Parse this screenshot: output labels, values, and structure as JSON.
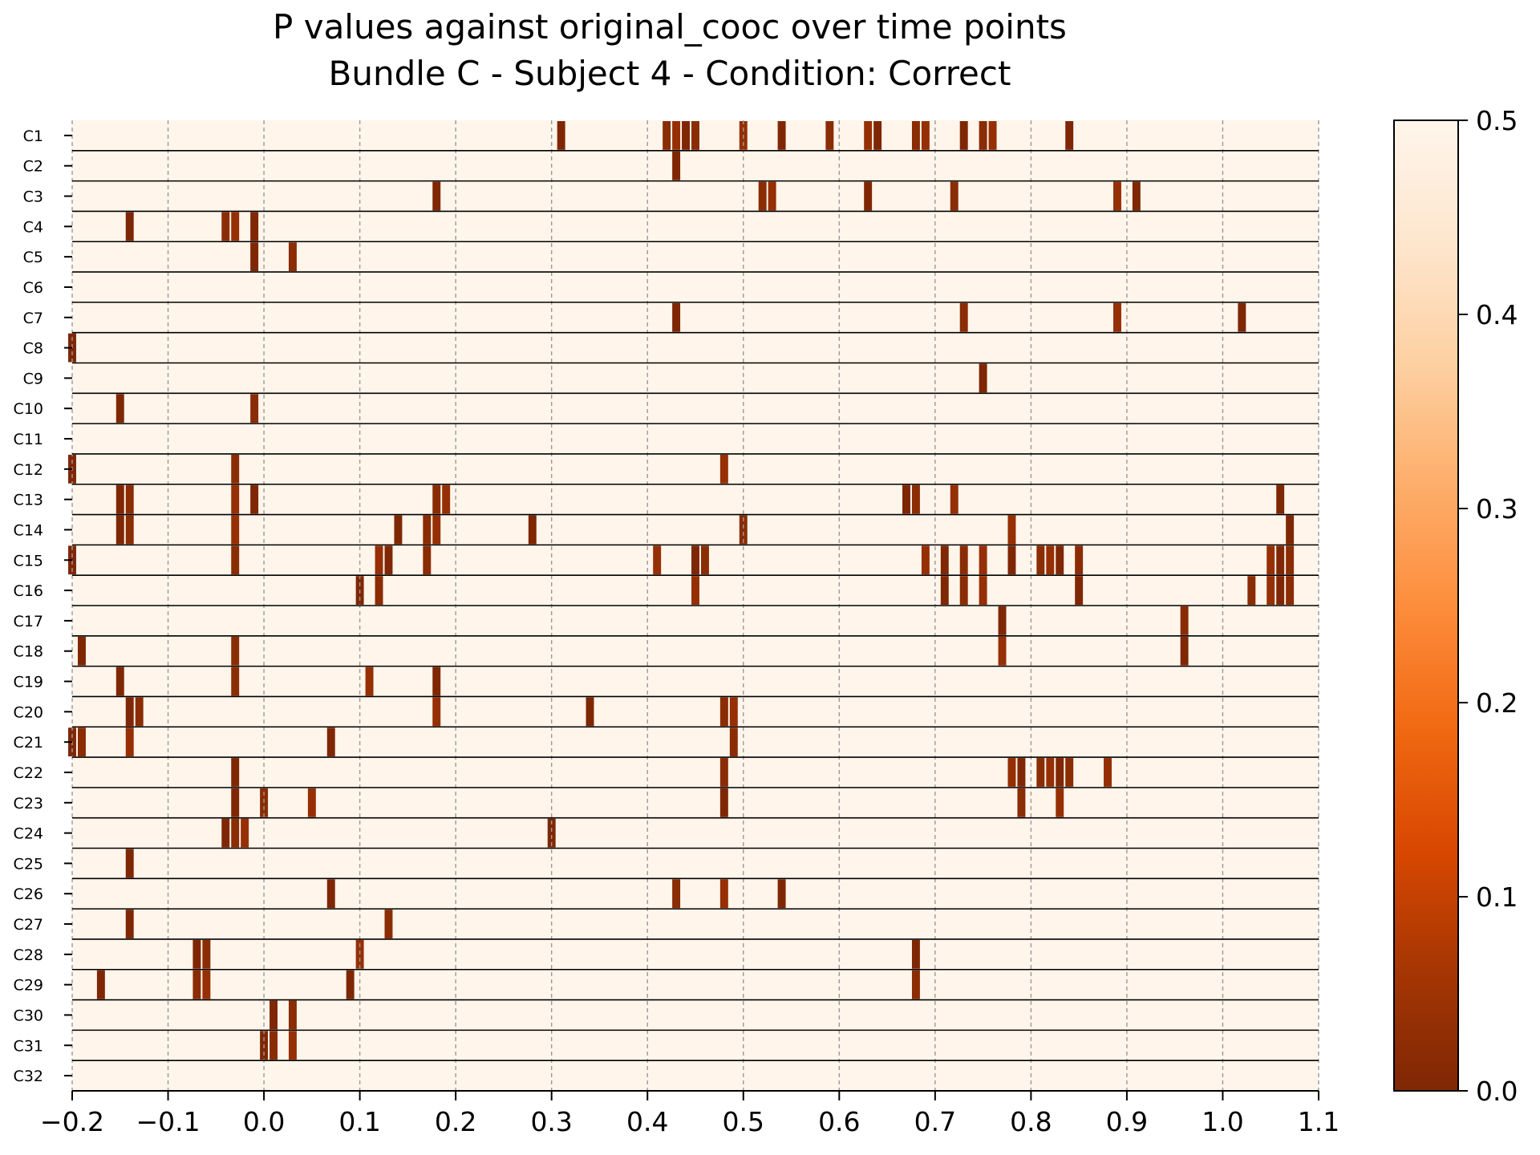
{
  "chart_data": {
    "type": "heatmap",
    "title": "P values against original_cooc over time points\nBundle C - Subject 4 - Condition: Correct",
    "title_lines": [
      "P values against original_cooc over time points",
      "Bundle C - Subject 4 - Condition: Correct"
    ],
    "xlabel": "",
    "ylabel": "",
    "xlim": [
      -0.2,
      1.1
    ],
    "xticks": [
      -0.2,
      -0.1,
      0.0,
      0.1,
      0.2,
      0.3,
      0.4,
      0.5,
      0.6,
      0.7,
      0.8,
      0.9,
      1.0,
      1.1
    ],
    "xtick_labels": [
      "−0.2",
      "−0.1",
      "0.0",
      "0.1",
      "0.2",
      "0.3",
      "0.4",
      "0.5",
      "0.6",
      "0.7",
      "0.8",
      "0.9",
      "1.0",
      "1.1"
    ],
    "grid": "x dashed gray at each tick",
    "colormap": "Oranges_r",
    "color_range": [
      0.0,
      0.5
    ],
    "colorbar": {
      "ticks": [
        0.0,
        0.1,
        0.2,
        0.3,
        0.4,
        0.5
      ],
      "tick_labels": [
        "0.0",
        "0.1",
        "0.2",
        "0.3",
        "0.4",
        "0.5"
      ],
      "placement": "right"
    },
    "background_value": 0.5,
    "time_step": 0.01,
    "rows": [
      "C1",
      "C2",
      "C3",
      "C4",
      "C5",
      "C6",
      "C7",
      "C8",
      "C9",
      "C10",
      "C11",
      "C12",
      "C13",
      "C14",
      "C15",
      "C16",
      "C17",
      "C18",
      "C19",
      "C20",
      "C21",
      "C22",
      "C23",
      "C24",
      "C25",
      "C26",
      "C27",
      "C28",
      "C29",
      "C30",
      "C31",
      "C32"
    ],
    "significant_times": {
      "C1": [
        0.31,
        0.42,
        0.43,
        0.44,
        0.45,
        0.5,
        0.54,
        0.59,
        0.63,
        0.64,
        0.68,
        0.69,
        0.73,
        0.75,
        0.76,
        0.84
      ],
      "C2": [
        0.43
      ],
      "C3": [
        0.18,
        0.52,
        0.53,
        0.63,
        0.72,
        0.89,
        0.91
      ],
      "C4": [
        -0.14,
        -0.04,
        -0.03,
        -0.01
      ],
      "C5": [
        -0.01,
        0.03
      ],
      "C6": [],
      "C7": [
        0.43,
        0.73,
        0.89,
        1.02
      ],
      "C8": [
        -0.2
      ],
      "C9": [
        0.75
      ],
      "C10": [
        -0.15,
        -0.01
      ],
      "C11": [],
      "C12": [
        -0.2,
        -0.03,
        0.48
      ],
      "C13": [
        -0.15,
        -0.14,
        -0.03,
        -0.01,
        0.18,
        0.19,
        0.67,
        0.68,
        0.72,
        1.06
      ],
      "C14": [
        -0.15,
        -0.14,
        -0.03,
        0.14,
        0.17,
        0.18,
        0.28,
        0.5,
        0.78,
        1.07
      ],
      "C15": [
        -0.2,
        -0.03,
        0.12,
        0.13,
        0.17,
        0.41,
        0.45,
        0.46,
        0.69,
        0.71,
        0.73,
        0.75,
        0.78,
        0.81,
        0.82,
        0.83,
        0.85,
        1.05,
        1.06,
        1.07
      ],
      "C16": [
        0.1,
        0.12,
        0.45,
        0.71,
        0.73,
        0.75,
        0.85,
        1.03,
        1.05,
        1.06,
        1.07
      ],
      "C17": [
        0.77,
        0.96
      ],
      "C18": [
        -0.19,
        -0.03,
        0.77,
        0.96
      ],
      "C19": [
        -0.15,
        -0.03,
        0.11,
        0.18
      ],
      "C20": [
        -0.14,
        -0.13,
        0.18,
        0.34,
        0.48,
        0.49
      ],
      "C21": [
        -0.2,
        -0.19,
        -0.14,
        0.07,
        0.49
      ],
      "C22": [
        -0.03,
        0.48,
        0.78,
        0.79,
        0.81,
        0.82,
        0.83,
        0.84,
        0.88
      ],
      "C23": [
        -0.03,
        0.0,
        0.05,
        0.48,
        0.79,
        0.83
      ],
      "C24": [
        -0.04,
        -0.03,
        -0.02,
        0.3
      ],
      "C25": [
        -0.14
      ],
      "C26": [
        0.07,
        0.43,
        0.48,
        0.54
      ],
      "C27": [
        -0.14,
        0.13
      ],
      "C28": [
        -0.07,
        -0.06,
        0.1,
        0.68
      ],
      "C29": [
        -0.17,
        -0.07,
        -0.06,
        0.09,
        0.68
      ],
      "C30": [
        0.01,
        0.03
      ],
      "C31": [
        0.0,
        0.01,
        0.03
      ],
      "C32": []
    }
  }
}
